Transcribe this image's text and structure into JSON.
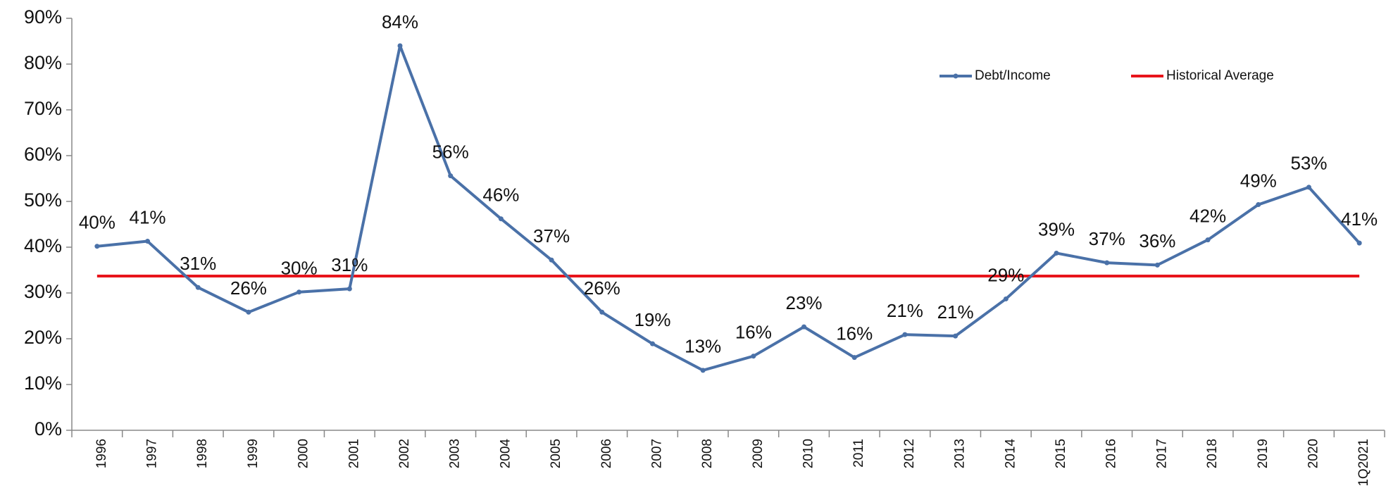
{
  "chart_data": {
    "type": "line",
    "categories": [
      "1996",
      "1997",
      "1998",
      "1999",
      "2000",
      "2001",
      "2002",
      "2003",
      "2004",
      "2005",
      "2006",
      "2007",
      "2008",
      "2009",
      "2010",
      "2011",
      "2012",
      "2013",
      "2014",
      "2015",
      "2016",
      "2017",
      "2018",
      "2019",
      "2020",
      "1Q2021"
    ],
    "series": [
      {
        "name": "Debt/Income",
        "color": "#4a71a8",
        "values": [
          40.2,
          41.3,
          31.2,
          25.8,
          30.2,
          30.9,
          84,
          55.6,
          46.2,
          37.2,
          25.8,
          18.9,
          13.1,
          16.2,
          22.6,
          15.9,
          20.9,
          20.6,
          28.7,
          38.7,
          36.6,
          36.1,
          41.6,
          49.3,
          53.1,
          40.9
        ],
        "value_labels": [
          "40%",
          "41%",
          "31%",
          "26%",
          "30%",
          "31%",
          "84%",
          "56%",
          "46%",
          "37%",
          "26%",
          "19%",
          "13%",
          "16%",
          "23%",
          "16%",
          "21%",
          "21%",
          "29%",
          "39%",
          "37%",
          "36%",
          "42%",
          "49%",
          "53%",
          "41%"
        ]
      },
      {
        "name": "Historical Average",
        "color": "#e8141b",
        "values": [
          33.7,
          33.7,
          33.7,
          33.7,
          33.7,
          33.7,
          33.7,
          33.7,
          33.7,
          33.7,
          33.7,
          33.7,
          33.7,
          33.7,
          33.7,
          33.7,
          33.7,
          33.7,
          33.7,
          33.7,
          33.7,
          33.7,
          33.7,
          33.7,
          33.7,
          33.7
        ]
      }
    ],
    "ylim": [
      0,
      90
    ],
    "yticks": [
      {
        "value": 0,
        "label": "0%"
      },
      {
        "value": 10,
        "label": "10%"
      },
      {
        "value": 20,
        "label": "20%"
      },
      {
        "value": 30,
        "label": "30%"
      },
      {
        "value": 40,
        "label": "40%"
      },
      {
        "value": 50,
        "label": "50%"
      },
      {
        "value": 60,
        "label": "60%"
      },
      {
        "value": 70,
        "label": "70%"
      },
      {
        "value": 80,
        "label": "80%"
      },
      {
        "value": 90,
        "label": "90%"
      }
    ],
    "grid": false,
    "legend": "top-right"
  }
}
